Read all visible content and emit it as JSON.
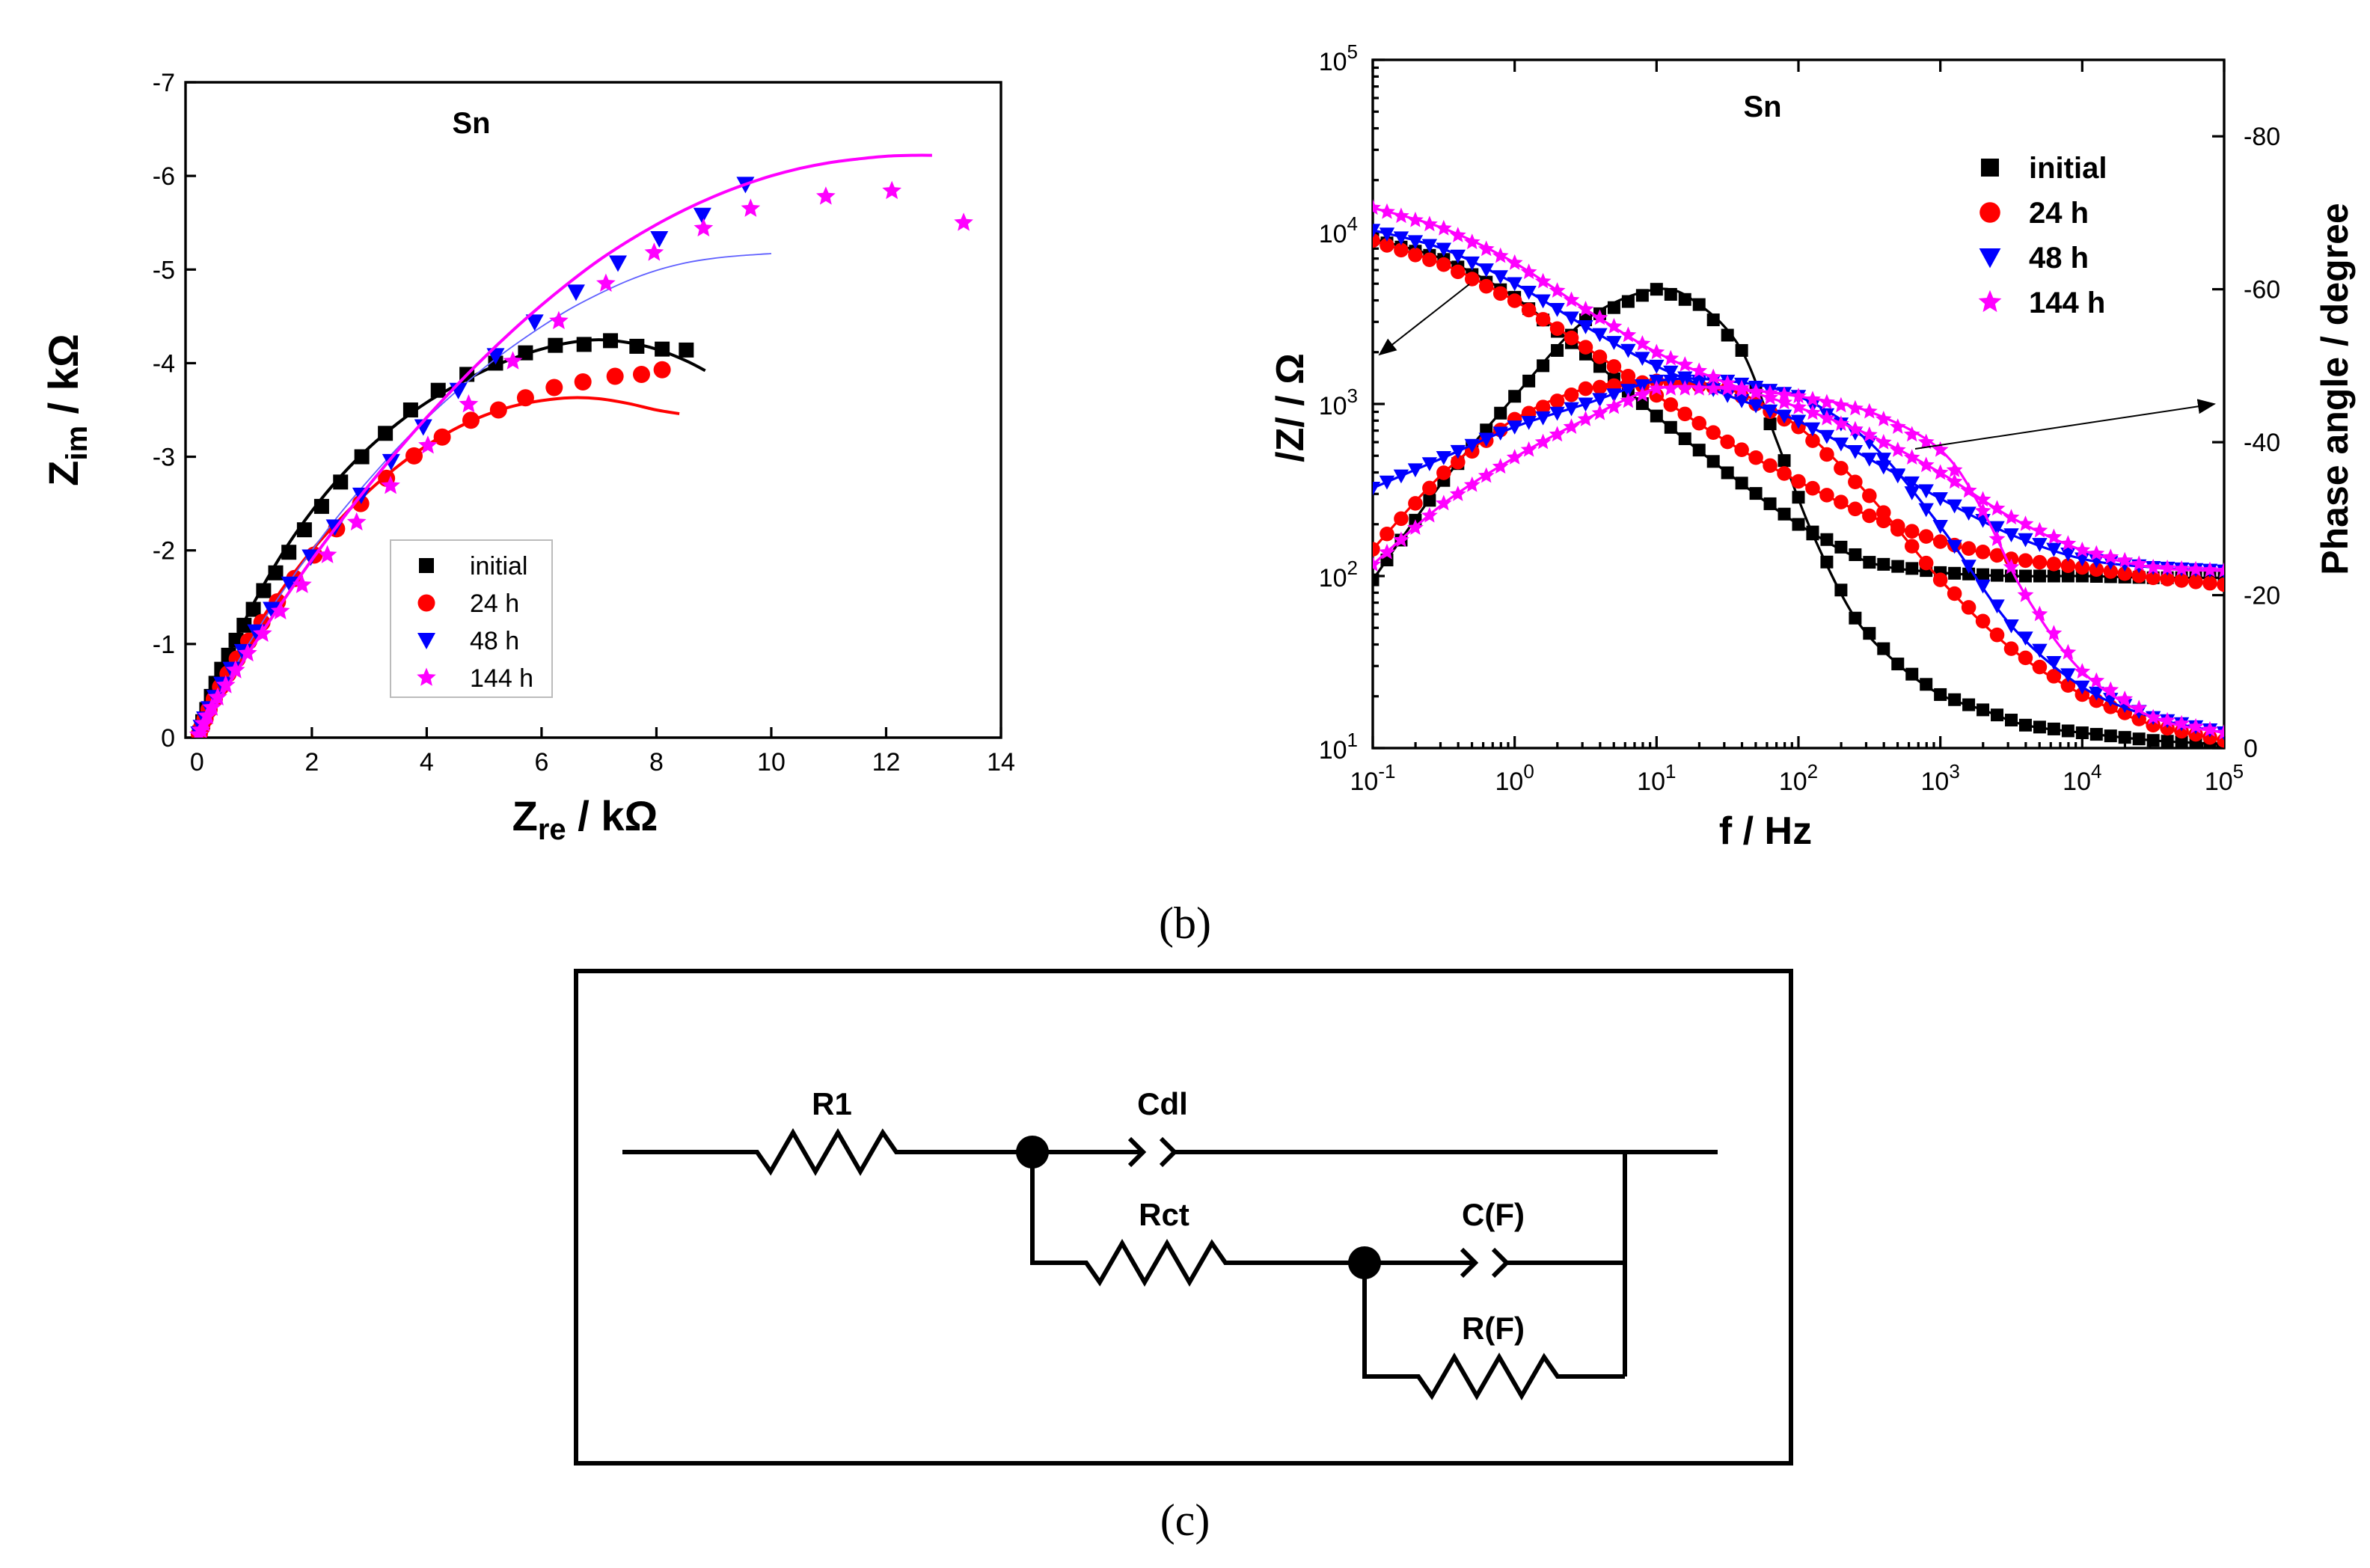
{
  "colors": {
    "initial": "#000000",
    "24 h": "#ff0000",
    "48 h": "#0000ff",
    "144 h": "#ff00ff",
    "thin_fit_48h": "#6060ff"
  },
  "chart_data": [
    {
      "id": "nyquist",
      "type": "scatter",
      "title": "Sn",
      "xlabel_main": "Z",
      "xlabel_sub": "re",
      "xlabel_unit": " / kΩ",
      "ylabel_main": "Z",
      "ylabel_sub": "im",
      "ylabel_unit": " / kΩ",
      "xlim": [
        -0.2,
        14
      ],
      "ylim": [
        0,
        -7
      ],
      "xticks": [
        0,
        2,
        4,
        6,
        8,
        10,
        12,
        14
      ],
      "yticks": [
        0,
        -1,
        -2,
        -3,
        -4,
        -5,
        -6,
        -7
      ],
      "legend_position": "lower-center",
      "series": [
        {
          "name": "initial",
          "marker": "square",
          "x": [
            0.05,
            0.1,
            0.17,
            0.25,
            0.33,
            0.43,
            0.55,
            0.68,
            0.82,
            0.98,
            1.16,
            1.37,
            1.6,
            1.87,
            2.17,
            2.5,
            2.87,
            3.28,
            3.72,
            4.2,
            4.7,
            5.2,
            5.72,
            6.24,
            6.74,
            7.2,
            7.66,
            8.1,
            8.52
          ],
          "y": [
            -0.05,
            -0.17,
            -0.3,
            -0.44,
            -0.58,
            -0.73,
            -0.88,
            -1.04,
            -1.2,
            -1.37,
            -1.57,
            -1.76,
            -1.98,
            -2.22,
            -2.47,
            -2.73,
            -3,
            -3.25,
            -3.5,
            -3.71,
            -3.88,
            -4.0,
            -4.11,
            -4.19,
            -4.2,
            -4.24,
            -4.18,
            -4.15,
            -4.14
          ],
          "fit_x": [
            0,
            0.2,
            0.5,
            1,
            1.5,
            2,
            2.5,
            3,
            3.5,
            4,
            4.5,
            5,
            5.5,
            6,
            6.5,
            7,
            7.5,
            8,
            8.5,
            8.85
          ],
          "fit_y": [
            0,
            -0.36,
            -0.82,
            -1.45,
            -1.98,
            -2.42,
            -2.79,
            -3.1,
            -3.36,
            -3.58,
            -3.76,
            -3.92,
            -4.05,
            -4.15,
            -4.22,
            -4.25,
            -4.22,
            -4.15,
            -4.03,
            -3.92
          ]
        },
        {
          "name": "24 h",
          "marker": "circle",
          "x": [
            0.04,
            0.08,
            0.14,
            0.21,
            0.3,
            0.41,
            0.54,
            0.7,
            0.9,
            1.13,
            1.4,
            1.7,
            2.04,
            2.43,
            2.85,
            3.3,
            3.78,
            4.27,
            4.77,
            5.25,
            5.72,
            6.22,
            6.72,
            7.28,
            7.74,
            8.1
          ],
          "y": [
            -0.04,
            -0.11,
            -0.2,
            -0.3,
            -0.41,
            -0.54,
            -0.68,
            -0.84,
            -1.03,
            -1.23,
            -1.45,
            -1.7,
            -1.95,
            -2.23,
            -2.5,
            -2.77,
            -3.01,
            -3.21,
            -3.39,
            -3.5,
            -3.63,
            -3.74,
            -3.8,
            -3.86,
            -3.88,
            -3.93
          ],
          "fit_x": [
            0,
            0.5,
            1,
            1.5,
            2,
            2.5,
            3,
            3.5,
            4,
            4.5,
            5,
            5.5,
            6,
            6.5,
            7,
            7.5,
            8,
            8.4
          ],
          "fit_y": [
            0,
            -0.6,
            -1.14,
            -1.6,
            -2.0,
            -2.34,
            -2.64,
            -2.9,
            -3.12,
            -3.3,
            -3.44,
            -3.54,
            -3.6,
            -3.63,
            -3.62,
            -3.57,
            -3.5,
            -3.46
          ]
        },
        {
          "name": "48 h",
          "marker": "triangle-down",
          "x": [
            0.04,
            0.08,
            0.14,
            0.22,
            0.32,
            0.44,
            0.6,
            0.8,
            1.03,
            1.3,
            1.62,
            1.98,
            2.4,
            2.86,
            3.38,
            3.94,
            4.55,
            5.2,
            5.88,
            6.6,
            7.33,
            8.05,
            8.8,
            9.55
          ],
          "y": [
            -0.04,
            -0.11,
            -0.2,
            -0.31,
            -0.43,
            -0.57,
            -0.73,
            -0.92,
            -1.13,
            -1.37,
            -1.64,
            -1.93,
            -2.25,
            -2.59,
            -2.95,
            -3.32,
            -3.71,
            -4.08,
            -4.44,
            -4.76,
            -5.07,
            -5.33,
            -5.58,
            -5.91
          ],
          "fit_x": [
            0,
            0.5,
            1,
            1.5,
            2,
            2.5,
            3,
            3.5,
            4,
            4.5,
            5,
            5.5,
            6,
            6.5,
            7,
            7.5,
            8,
            8.5,
            9,
            9.5,
            10
          ],
          "fit_y": [
            0,
            -0.58,
            -1.1,
            -1.57,
            -2.0,
            -2.4,
            -2.76,
            -3.1,
            -3.41,
            -3.69,
            -3.95,
            -4.18,
            -4.39,
            -4.58,
            -4.74,
            -4.88,
            -4.99,
            -5.07,
            -5.12,
            -5.15,
            -5.17
          ]
        },
        {
          "name": "144 h",
          "marker": "star",
          "x": [
            0.03,
            0.07,
            0.12,
            0.18,
            0.26,
            0.36,
            0.5,
            0.67,
            0.88,
            1.14,
            1.45,
            1.83,
            2.27,
            2.78,
            3.37,
            4.02,
            4.73,
            5.5,
            6.3,
            7.12,
            7.96,
            8.82,
            9.64,
            10.95,
            12.1,
            13.35
          ],
          "y": [
            -0.03,
            -0.08,
            -0.15,
            -0.23,
            -0.32,
            -0.43,
            -0.56,
            -0.72,
            -0.9,
            -1.11,
            -1.35,
            -1.63,
            -1.95,
            -2.3,
            -2.69,
            -3.12,
            -3.56,
            -4.02,
            -4.45,
            -4.85,
            -5.18,
            -5.44,
            -5.65,
            -5.78,
            -5.84,
            -5.5
          ],
          "fit_x": [
            0,
            0.5,
            1,
            1.5,
            2,
            2.5,
            3,
            3.5,
            4,
            4.5,
            5,
            5.5,
            6,
            6.5,
            7,
            7.5,
            8,
            8.5,
            9,
            9.5,
            10,
            10.5,
            11,
            11.5,
            12,
            12.5,
            12.8
          ],
          "fit_y": [
            0,
            -0.52,
            -1.0,
            -1.46,
            -1.9,
            -2.31,
            -2.7,
            -3.07,
            -3.42,
            -3.75,
            -4.06,
            -4.35,
            -4.62,
            -4.87,
            -5.1,
            -5.3,
            -5.48,
            -5.64,
            -5.78,
            -5.9,
            -6.0,
            -6.08,
            -6.14,
            -6.18,
            -6.21,
            -6.22,
            -6.22
          ]
        }
      ]
    },
    {
      "id": "bode",
      "type": "scatter",
      "title": "Sn",
      "xlabel": "f / Hz",
      "ylabel_left": "/Z/ / Ω",
      "ylabel_right": "Phase angle / degree",
      "xscale": "log",
      "yscale_left": "log",
      "xlim_decades": [
        -1,
        5
      ],
      "ylim_left_decades": [
        1,
        5
      ],
      "ylim_right": [
        0,
        -90
      ],
      "xtick_decades": [
        "-1",
        "0",
        "1",
        "2",
        "3",
        "4",
        "5"
      ],
      "ytick_left_decades": [
        "1",
        "2",
        "3",
        "4",
        "5"
      ],
      "yticks_right": [
        "0",
        "-20",
        "-40",
        "-60",
        "-80"
      ],
      "legend_position": "top-right",
      "annotations": [
        "arrow from |Z| curves to left axis",
        "arrow from phase curves to right axis"
      ],
      "series": [
        {
          "name": "initial",
          "marker": "square",
          "modulus_logf": [
            -1,
            -0.5,
            0,
            0.5,
            1,
            1.5,
            2,
            2.5,
            3,
            3.5,
            4,
            4.5,
            5
          ],
          "modulus_logZ": [
            3.96,
            3.84,
            3.62,
            3.29,
            2.93,
            2.6,
            2.3,
            2.08,
            2.02,
            2.0,
            2.0,
            1.99,
            1.99
          ],
          "phase_logf": [
            -1,
            -0.5,
            0,
            0.5,
            1,
            1.3,
            1.6,
            1.85,
            2.1,
            2.4,
            2.7,
            3.0,
            3.3,
            3.6,
            4.0,
            4.5,
            5
          ],
          "phase_deg": [
            -22,
            -35,
            -46,
            -56,
            -60,
            -58,
            -52,
            -40,
            -28,
            -17,
            -11,
            -7,
            -5,
            -3,
            -2,
            -1,
            -0.5
          ]
        },
        {
          "name": "24 h",
          "marker": "circle",
          "modulus_logf": [
            -1,
            -0.5,
            0,
            0.5,
            1,
            1.5,
            2,
            2.5,
            3,
            3.5,
            4,
            4.5,
            5
          ],
          "modulus_logZ": [
            3.95,
            3.81,
            3.6,
            3.33,
            3.05,
            2.78,
            2.55,
            2.35,
            2.2,
            2.1,
            2.05,
            1.99,
            1.95
          ],
          "phase_logf": [
            -1,
            -0.5,
            0,
            0.5,
            1,
            1.5,
            2,
            2.5,
            3,
            3.5,
            4,
            4.5,
            5
          ],
          "phase_deg": [
            -26,
            -36,
            -43,
            -47,
            -48,
            -47,
            -42,
            -33,
            -22,
            -13,
            -7,
            -3,
            -1
          ]
        },
        {
          "name": "48 h",
          "marker": "triangle-down",
          "modulus_logf": [
            -1,
            -0.5,
            0,
            0.5,
            1,
            1.5,
            2,
            2.5,
            3,
            3.5,
            4,
            4.5,
            5
          ],
          "modulus_logZ": [
            4.01,
            3.9,
            3.7,
            3.45,
            3.22,
            3.05,
            2.9,
            2.68,
            2.45,
            2.24,
            2.1,
            2.05,
            2.03
          ],
          "phase_logf": [
            -1,
            -0.5,
            0,
            0.5,
            1,
            1.5,
            2,
            2.5,
            3,
            3.5,
            4,
            4.5,
            5
          ],
          "phase_deg": [
            -34,
            -38,
            -42,
            -45,
            -48,
            -48,
            -46,
            -40,
            -29,
            -16,
            -8,
            -4,
            -2
          ]
        },
        {
          "name": "144 h",
          "marker": "star",
          "modulus_logf": [
            -1,
            -0.5,
            0,
            0.5,
            1,
            1.5,
            2,
            2.5,
            3,
            3.5,
            4,
            4.5,
            5
          ],
          "modulus_logZ": [
            4.14,
            4.02,
            3.82,
            3.55,
            3.3,
            3.12,
            2.98,
            2.82,
            2.6,
            2.34,
            2.15,
            2.05,
            2.03
          ],
          "phase_logf": [
            -1,
            -0.5,
            0,
            0.5,
            1,
            1.5,
            2,
            2.5,
            3,
            3.3,
            3.6,
            4,
            4.5,
            5
          ],
          "phase_deg": [
            -24,
            -32,
            -38,
            -43,
            -47,
            -47,
            -46,
            -44,
            -39,
            -31,
            -20,
            -10,
            -4,
            -2
          ]
        }
      ]
    }
  ],
  "captions": {
    "b": "(b)",
    "c": "(c)"
  },
  "circuit": {
    "labels": {
      "r1": "R1",
      "cdl": "Cdl",
      "rct": "Rct",
      "cf": "C(F)",
      "rf": "R(F)"
    }
  }
}
